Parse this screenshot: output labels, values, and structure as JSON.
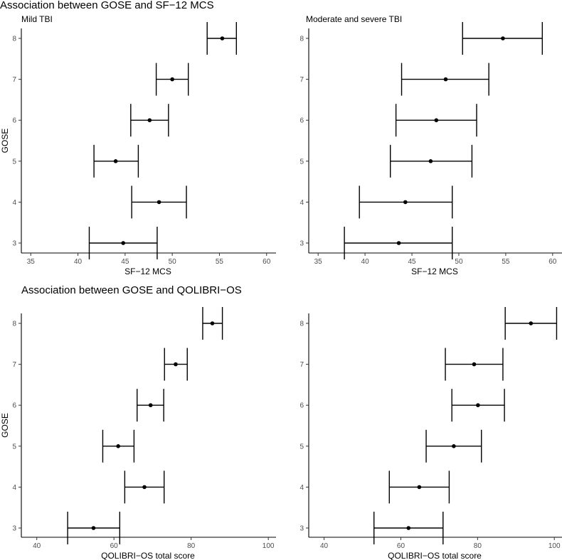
{
  "sections": [
    {
      "title": "Association between GOSE and SF−12 MCS"
    },
    {
      "title": "Association between GOSE and QOLIBRI−OS"
    }
  ],
  "chart_data": [
    {
      "type": "errorbar",
      "subtitle": "Mild TBI",
      "xlabel": "SF−12 MCS",
      "ylabel": "GOSE",
      "xlim": [
        34,
        61
      ],
      "xticks": [
        35,
        40,
        45,
        50,
        55,
        60
      ],
      "categories": [
        "3",
        "4",
        "5",
        "6",
        "7",
        "8"
      ],
      "points": [
        {
          "y": "3",
          "mean": 44.8,
          "low": 41.2,
          "high": 48.4
        },
        {
          "y": "4",
          "mean": 48.6,
          "low": 45.7,
          "high": 51.5
        },
        {
          "y": "5",
          "mean": 44.0,
          "low": 41.7,
          "high": 46.4
        },
        {
          "y": "6",
          "mean": 47.6,
          "low": 45.6,
          "high": 49.6
        },
        {
          "y": "7",
          "mean": 50.0,
          "low": 48.3,
          "high": 51.7
        },
        {
          "y": "8",
          "mean": 55.3,
          "low": 53.7,
          "high": 56.8
        }
      ]
    },
    {
      "type": "errorbar",
      "subtitle": "Moderate and severe TBI",
      "xlabel": "SF−12 MCS",
      "ylabel": "",
      "xlim": [
        34,
        61
      ],
      "xticks": [
        35,
        40,
        45,
        50,
        55,
        60
      ],
      "categories": [
        "3",
        "4",
        "5",
        "6",
        "7",
        "8"
      ],
      "points": [
        {
          "y": "3",
          "mean": 43.6,
          "low": 37.8,
          "high": 49.3
        },
        {
          "y": "4",
          "mean": 44.3,
          "low": 39.4,
          "high": 49.3
        },
        {
          "y": "5",
          "mean": 47.0,
          "low": 42.7,
          "high": 51.4
        },
        {
          "y": "6",
          "mean": 47.6,
          "low": 43.3,
          "high": 51.9
        },
        {
          "y": "7",
          "mean": 48.6,
          "low": 43.9,
          "high": 53.2
        },
        {
          "y": "8",
          "mean": 54.7,
          "low": 50.4,
          "high": 58.9
        }
      ]
    },
    {
      "type": "errorbar",
      "subtitle": "",
      "xlabel": "QOLIBRI−OS total score",
      "ylabel": "GOSE",
      "xlim": [
        36,
        102
      ],
      "xticks": [
        40,
        60,
        80,
        100
      ],
      "categories": [
        "3",
        "4",
        "5",
        "6",
        "7",
        "8"
      ],
      "points": [
        {
          "y": "3",
          "mean": 54.7,
          "low": 48.0,
          "high": 61.5
        },
        {
          "y": "4",
          "mean": 67.9,
          "low": 62.8,
          "high": 73.0
        },
        {
          "y": "5",
          "mean": 61.1,
          "low": 57.1,
          "high": 65.2
        },
        {
          "y": "6",
          "mean": 69.5,
          "low": 66.0,
          "high": 72.9
        },
        {
          "y": "7",
          "mean": 76.0,
          "low": 73.1,
          "high": 79.0
        },
        {
          "y": "8",
          "mean": 85.5,
          "low": 83.0,
          "high": 88.1
        }
      ]
    },
    {
      "type": "errorbar",
      "subtitle": "",
      "xlabel": "QOLIBRI−OS total score",
      "ylabel": "",
      "xlim": [
        36,
        102
      ],
      "xticks": [
        40,
        60,
        80,
        100
      ],
      "categories": [
        "3",
        "4",
        "5",
        "6",
        "7",
        "8"
      ],
      "points": [
        {
          "y": "3",
          "mean": 62.0,
          "low": 53.0,
          "high": 71.0
        },
        {
          "y": "4",
          "mean": 64.8,
          "low": 57.0,
          "high": 72.6
        },
        {
          "y": "5",
          "mean": 73.8,
          "low": 66.6,
          "high": 81.0
        },
        {
          "y": "6",
          "mean": 80.1,
          "low": 73.3,
          "high": 87.0
        },
        {
          "y": "7",
          "mean": 79.1,
          "low": 71.6,
          "high": 86.6
        },
        {
          "y": "8",
          "mean": 93.9,
          "low": 87.2,
          "high": 100.6
        }
      ]
    }
  ]
}
